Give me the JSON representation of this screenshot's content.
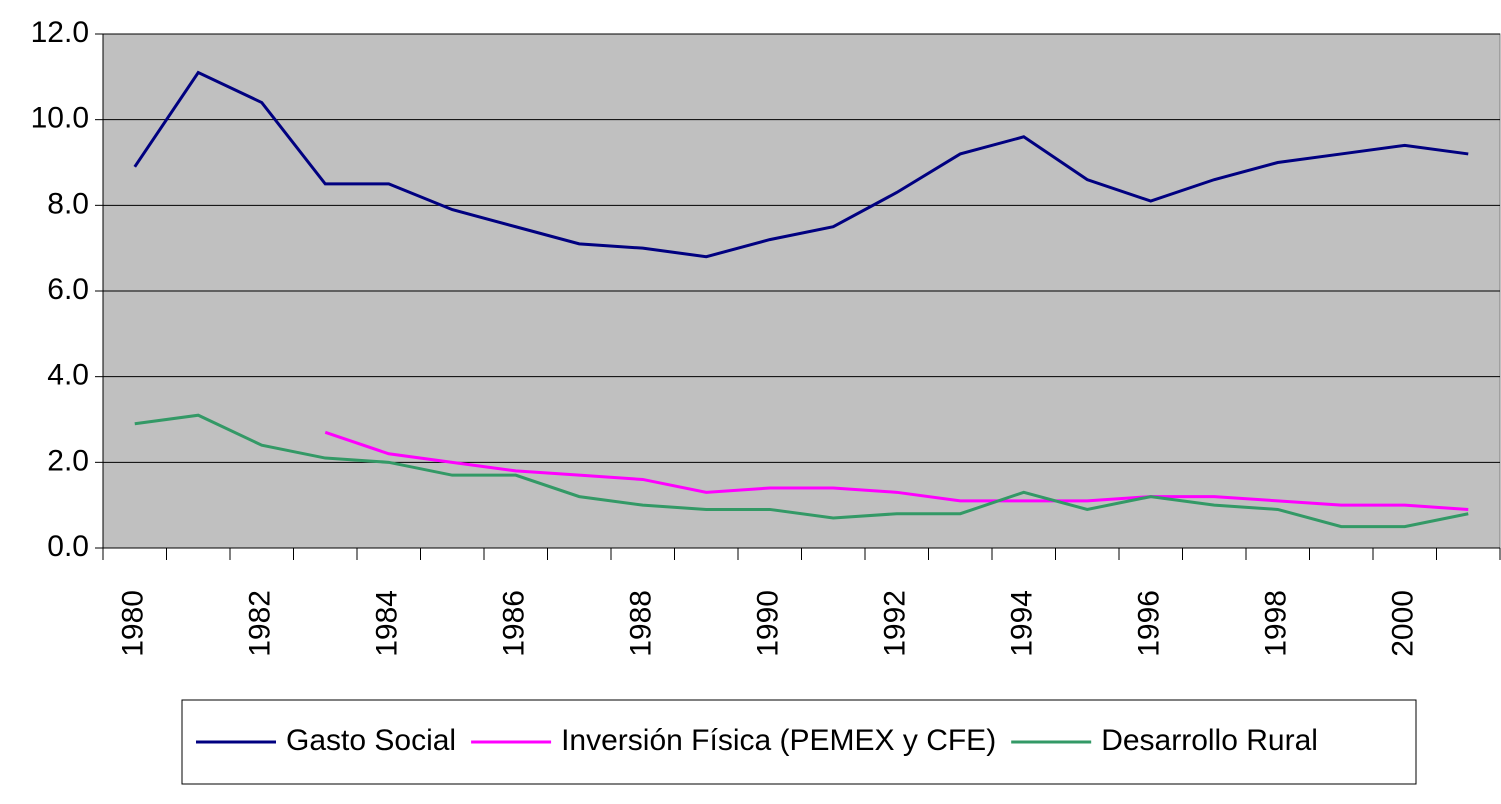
{
  "chart_data": {
    "type": "line",
    "categories": [
      "1980",
      null,
      "1982",
      null,
      "1984",
      null,
      "1986",
      null,
      "1988",
      null,
      "1990",
      null,
      "1992",
      null,
      "1994",
      null,
      "1996",
      null,
      "1998",
      null,
      "2000",
      null
    ],
    "series": [
      {
        "name": "Gasto Social",
        "color": "#000080",
        "values": [
          8.9,
          11.1,
          10.4,
          8.5,
          8.5,
          7.9,
          7.5,
          7.1,
          7.0,
          6.8,
          7.2,
          7.5,
          8.3,
          9.2,
          9.6,
          8.6,
          8.1,
          8.6,
          9.0,
          9.2,
          9.4,
          9.2
        ]
      },
      {
        "name": "Inversión Física (PEMEX y CFE)",
        "color": "#ff00ff",
        "values": [
          null,
          null,
          null,
          2.7,
          2.2,
          2.0,
          1.8,
          1.7,
          1.6,
          1.3,
          1.4,
          1.4,
          1.3,
          1.1,
          1.1,
          1.1,
          1.2,
          1.2,
          1.1,
          1.0,
          1.0,
          0.9
        ]
      },
      {
        "name": "Desarrollo Rural",
        "color": "#339966",
        "values": [
          2.9,
          3.1,
          2.4,
          2.1,
          2.0,
          1.7,
          1.7,
          1.2,
          1.0,
          0.9,
          0.9,
          0.7,
          0.8,
          0.8,
          1.3,
          0.9,
          1.2,
          1.0,
          0.9,
          0.5,
          0.5,
          0.8
        ]
      }
    ],
    "ylim": [
      0,
      12
    ],
    "yticks": [
      {
        "value": 0,
        "label": "0.0"
      },
      {
        "value": 2,
        "label": "2.0"
      },
      {
        "value": 4,
        "label": "4.0"
      },
      {
        "value": 6,
        "label": "6.0"
      },
      {
        "value": 8,
        "label": "8.0"
      },
      {
        "value": 10,
        "label": "10.0"
      },
      {
        "value": 12,
        "label": "12.0"
      }
    ],
    "grid": true,
    "plot_background": "#c0c0c0",
    "legend": "bottom"
  }
}
